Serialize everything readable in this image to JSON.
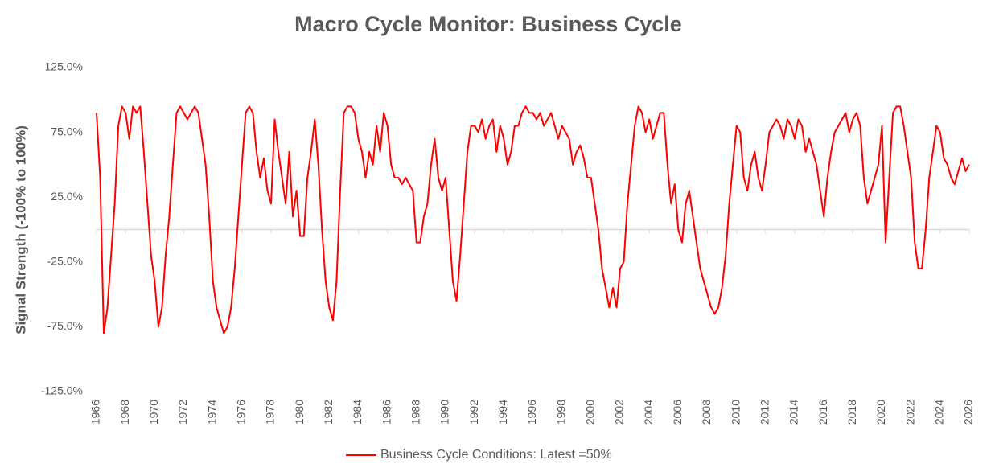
{
  "chart_data": {
    "type": "line",
    "title": "Macro Cycle Monitor: Business Cycle",
    "y_label": "Signal Strength (-100% to 100%)",
    "x": [
      1966,
      1966.25,
      1966.5,
      1966.75,
      1967,
      1967.25,
      1967.5,
      1967.75,
      1968,
      1968.25,
      1968.5,
      1968.75,
      1969,
      1969.25,
      1969.5,
      1969.75,
      1970,
      1970.25,
      1970.5,
      1970.75,
      1971,
      1971.25,
      1971.5,
      1971.75,
      1972,
      1972.25,
      1972.5,
      1972.75,
      1973,
      1973.25,
      1973.5,
      1973.75,
      1974,
      1974.25,
      1974.5,
      1974.75,
      1975,
      1975.25,
      1975.5,
      1975.75,
      1976,
      1976.25,
      1976.5,
      1976.75,
      1977,
      1977.25,
      1977.5,
      1977.75,
      1978,
      1978.25,
      1978.5,
      1978.75,
      1979,
      1979.25,
      1979.5,
      1979.75,
      1980,
      1980.25,
      1980.5,
      1980.75,
      1981,
      1981.25,
      1981.5,
      1981.75,
      1982,
      1982.25,
      1982.5,
      1982.75,
      1983,
      1983.25,
      1983.5,
      1983.75,
      1984,
      1984.25,
      1984.5,
      1984.75,
      1985,
      1985.25,
      1985.5,
      1985.75,
      1986,
      1986.25,
      1986.5,
      1986.75,
      1987,
      1987.25,
      1987.5,
      1987.75,
      1988,
      1988.25,
      1988.5,
      1988.75,
      1989,
      1989.25,
      1989.5,
      1989.75,
      1990,
      1990.25,
      1990.5,
      1990.75,
      1991,
      1991.25,
      1991.5,
      1991.75,
      1992,
      1992.25,
      1992.5,
      1992.75,
      1993,
      1993.25,
      1993.5,
      1993.75,
      1994,
      1994.25,
      1994.5,
      1994.75,
      1995,
      1995.25,
      1995.5,
      1995.75,
      1996,
      1996.25,
      1996.5,
      1996.75,
      1997,
      1997.25,
      1997.5,
      1997.75,
      1998,
      1998.25,
      1998.5,
      1998.75,
      1999,
      1999.25,
      1999.5,
      1999.75,
      2000,
      2000.25,
      2000.5,
      2000.75,
      2001,
      2001.25,
      2001.5,
      2001.75,
      2002,
      2002.25,
      2002.5,
      2002.75,
      2003,
      2003.25,
      2003.5,
      2003.75,
      2004,
      2004.25,
      2004.5,
      2004.75,
      2005,
      2005.25,
      2005.5,
      2005.75,
      2006,
      2006.25,
      2006.5,
      2006.75,
      2007,
      2007.25,
      2007.5,
      2007.75,
      2008,
      2008.25,
      2008.5,
      2008.75,
      2009,
      2009.25,
      2009.5,
      2009.75,
      2010,
      2010.25,
      2010.5,
      2010.75,
      2011,
      2011.25,
      2011.5,
      2011.75,
      2012,
      2012.25,
      2012.5,
      2012.75,
      2013,
      2013.25,
      2013.5,
      2013.75,
      2014,
      2014.25,
      2014.5,
      2014.75,
      2015,
      2015.25,
      2015.5,
      2015.75,
      2016,
      2016.25,
      2016.5,
      2016.75,
      2017,
      2017.25,
      2017.5,
      2017.75,
      2018,
      2018.25,
      2018.5,
      2018.75,
      2019,
      2019.25,
      2019.5,
      2019.75,
      2020,
      2020.25,
      2020.5,
      2020.75,
      2021,
      2021.25,
      2021.5,
      2021.75,
      2022,
      2022.25,
      2022.5,
      2022.75,
      2023,
      2023.25,
      2023.5,
      2023.75,
      2024,
      2024.25,
      2024.5,
      2024.75,
      2025,
      2025.25,
      2025.5,
      2025.75,
      2026
    ],
    "series": [
      {
        "name": "Business Cycle Conditions: Latest =50%",
        "color": "#ff0000",
        "values": [
          90,
          40,
          -80,
          -60,
          -20,
          20,
          80,
          95,
          90,
          70,
          95,
          90,
          95,
          60,
          20,
          -20,
          -40,
          -75,
          -60,
          -20,
          10,
          50,
          90,
          95,
          90,
          85,
          90,
          95,
          90,
          70,
          50,
          10,
          -40,
          -60,
          -70,
          -80,
          -75,
          -60,
          -30,
          10,
          50,
          90,
          95,
          90,
          60,
          40,
          55,
          30,
          20,
          85,
          60,
          40,
          20,
          60,
          10,
          30,
          -5,
          -5,
          40,
          60,
          85,
          50,
          0,
          -40,
          -60,
          -70,
          -40,
          30,
          90,
          95,
          95,
          90,
          70,
          60,
          40,
          60,
          50,
          80,
          60,
          90,
          80,
          50,
          40,
          40,
          35,
          40,
          35,
          30,
          -10,
          -10,
          10,
          20,
          50,
          70,
          40,
          30,
          40,
          0,
          -40,
          -55,
          -20,
          20,
          60,
          80,
          80,
          75,
          85,
          70,
          80,
          85,
          60,
          80,
          70,
          50,
          60,
          80,
          80,
          90,
          95,
          90,
          90,
          85,
          90,
          80,
          85,
          90,
          80,
          70,
          80,
          75,
          70,
          50,
          60,
          65,
          55,
          40,
          40,
          20,
          0,
          -30,
          -45,
          -60,
          -45,
          -60,
          -30,
          -25,
          20,
          50,
          80,
          95,
          90,
          75,
          85,
          70,
          80,
          90,
          90,
          50,
          20,
          35,
          0,
          -10,
          20,
          30,
          10,
          -10,
          -30,
          -40,
          -50,
          -60,
          -65,
          -60,
          -45,
          -20,
          20,
          50,
          80,
          75,
          40,
          30,
          50,
          60,
          40,
          30,
          50,
          75,
          80,
          85,
          80,
          70,
          85,
          80,
          70,
          85,
          80,
          60,
          70,
          60,
          50,
          30,
          10,
          40,
          60,
          75,
          80,
          85,
          90,
          75,
          85,
          90,
          80,
          40,
          20,
          30,
          40,
          50,
          80,
          -10,
          40,
          90,
          95,
          95,
          80,
          60,
          40,
          -10,
          -30,
          -30,
          0,
          40,
          60,
          80,
          75,
          55,
          50,
          40,
          35,
          45,
          55,
          45,
          50
        ]
      }
    ],
    "xlim": [
      1966,
      2026
    ],
    "xticks": [
      1966,
      1968,
      1970,
      1972,
      1974,
      1976,
      1978,
      1980,
      1982,
      1984,
      1986,
      1988,
      1990,
      1992,
      1994,
      1996,
      1998,
      2000,
      2002,
      2004,
      2006,
      2008,
      2010,
      2012,
      2014,
      2016,
      2018,
      2020,
      2022,
      2024,
      2026
    ],
    "ylim": [
      -125,
      125
    ],
    "yticks": [
      {
        "value": -125,
        "label": "-125.0%"
      },
      {
        "value": -75,
        "label": "-75.0%"
      },
      {
        "value": -25,
        "label": "-25.0%"
      },
      {
        "value": 25,
        "label": "25.0%"
      },
      {
        "value": 75,
        "label": "75.0%"
      },
      {
        "value": 125,
        "label": "125.0%"
      }
    ],
    "legend": "bottom"
  }
}
